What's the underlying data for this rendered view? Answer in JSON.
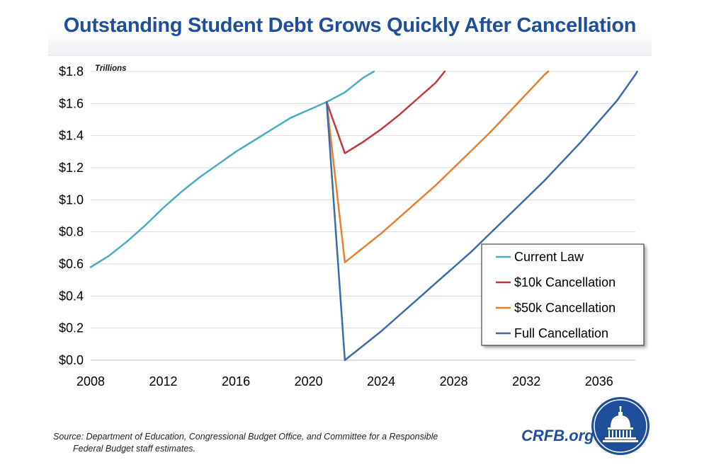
{
  "title": "Outstanding Student Debt Grows Quickly After Cancellation",
  "source_line1": "Source: Department of Education, Congressional Budget Office, and Committee for a Responsible",
  "source_line2": "Federal Budget staff estimates.",
  "brand": "CRFB.org",
  "chart_data": {
    "type": "line",
    "title": "Outstanding Student Debt Grows Quickly After Cancellation",
    "ylabel": "Trillions",
    "xlabel": "",
    "xlim": [
      2008,
      2038
    ],
    "ylim": [
      0,
      1.8
    ],
    "x_ticks": [
      2008,
      2012,
      2016,
      2020,
      2024,
      2028,
      2032,
      2036
    ],
    "y_ticks": [
      0,
      0.2,
      0.4,
      0.6,
      0.8,
      1.0,
      1.2,
      1.4,
      1.6,
      1.8
    ],
    "y_tick_labels": [
      "$0.0",
      "$0.2",
      "$0.4",
      "$0.6",
      "$0.8",
      "$1.0",
      "$1.2",
      "$1.4",
      "$1.6",
      "$1.8"
    ],
    "grid": "horizontal",
    "legend_position": "bottom-right",
    "series": [
      {
        "name": "Current Law",
        "color": "#4bacc6",
        "points": [
          [
            2008,
            0.58
          ],
          [
            2009,
            0.65
          ],
          [
            2010,
            0.74
          ],
          [
            2011,
            0.84
          ],
          [
            2012,
            0.95
          ],
          [
            2013,
            1.05
          ],
          [
            2014,
            1.14
          ],
          [
            2015,
            1.22
          ],
          [
            2016,
            1.3
          ],
          [
            2017,
            1.37
          ],
          [
            2018,
            1.44
          ],
          [
            2019,
            1.51
          ],
          [
            2020,
            1.56
          ],
          [
            2021,
            1.61
          ],
          [
            2022,
            1.67
          ],
          [
            2023,
            1.76
          ],
          [
            2023.6,
            1.82
          ]
        ]
      },
      {
        "name": "$10k Cancellation",
        "color": "#c0393c",
        "points": [
          [
            2021,
            1.61
          ],
          [
            2022,
            1.29
          ],
          [
            2023,
            1.36
          ],
          [
            2024,
            1.44
          ],
          [
            2025,
            1.53
          ],
          [
            2026,
            1.63
          ],
          [
            2027,
            1.73
          ],
          [
            2027.5,
            1.8
          ]
        ]
      },
      {
        "name": "$50k Cancellation",
        "color": "#e87e2e",
        "points": [
          [
            2021,
            1.61
          ],
          [
            2022,
            0.61
          ],
          [
            2023,
            0.7
          ],
          [
            2024,
            0.79
          ],
          [
            2025,
            0.89
          ],
          [
            2026,
            0.99
          ],
          [
            2027,
            1.09
          ],
          [
            2028,
            1.2
          ],
          [
            2029,
            1.31
          ],
          [
            2030,
            1.42
          ],
          [
            2031,
            1.54
          ],
          [
            2032,
            1.66
          ],
          [
            2033,
            1.78
          ],
          [
            2033.2,
            1.81
          ]
        ]
      },
      {
        "name": "Full Cancellation",
        "color": "#3d6aa8",
        "points": [
          [
            2021,
            1.61
          ],
          [
            2022,
            0.0
          ],
          [
            2023,
            0.09
          ],
          [
            2024,
            0.18
          ],
          [
            2025,
            0.28
          ],
          [
            2026,
            0.38
          ],
          [
            2027,
            0.48
          ],
          [
            2028,
            0.58
          ],
          [
            2029,
            0.68
          ],
          [
            2030,
            0.79
          ],
          [
            2031,
            0.9
          ],
          [
            2032,
            1.01
          ],
          [
            2033,
            1.12
          ],
          [
            2034,
            1.24
          ],
          [
            2035,
            1.36
          ],
          [
            2036,
            1.49
          ],
          [
            2037,
            1.62
          ],
          [
            2038,
            1.78
          ],
          [
            2038.1,
            1.8
          ]
        ]
      }
    ]
  }
}
